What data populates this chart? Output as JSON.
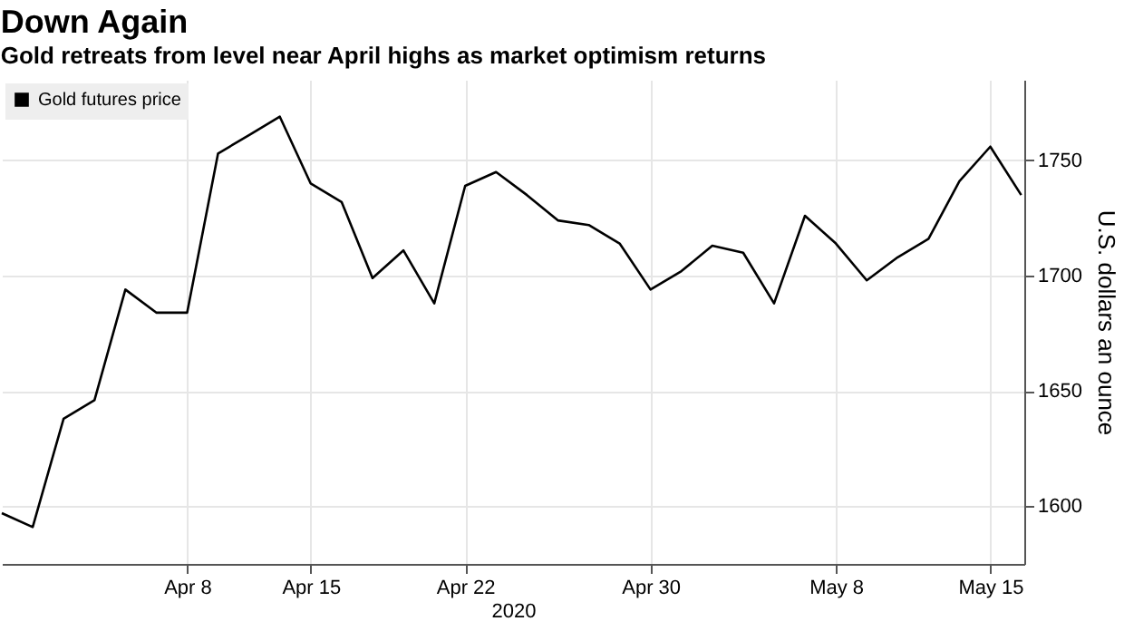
{
  "chart_data": {
    "type": "line",
    "title": "Down Again",
    "subtitle": "Gold retreats from level near April highs as market optimism returns",
    "xlabel": "2020",
    "ylabel": "U.S. dollars an ounce",
    "categories": [
      null,
      null,
      null,
      null,
      null,
      null,
      "Apr 8",
      null,
      null,
      null,
      "Apr 15",
      null,
      null,
      null,
      null,
      "Apr 22",
      null,
      null,
      null,
      null,
      null,
      "Apr 30",
      null,
      null,
      null,
      null,
      null,
      "May 8",
      null,
      null,
      null,
      null,
      "May 15",
      null
    ],
    "series": [
      {
        "name": "Gold futures price",
        "color": "#000000",
        "values": [
          1597,
          1591,
          1638,
          1646,
          1694,
          1684,
          1684,
          1753,
          1761,
          1769,
          1740,
          1732,
          1699,
          1711,
          1688,
          1739,
          1745,
          1735,
          1724,
          1722,
          1714,
          1694,
          1702,
          1713,
          1710,
          1688,
          1726,
          1714,
          1698,
          1708,
          1716,
          1741,
          1756,
          1735
        ]
      }
    ],
    "ylim": [
      1575,
      1785
    ],
    "yticks": [
      1600,
      1650,
      1700,
      1750
    ],
    "grid": true,
    "legend": "top left"
  }
}
